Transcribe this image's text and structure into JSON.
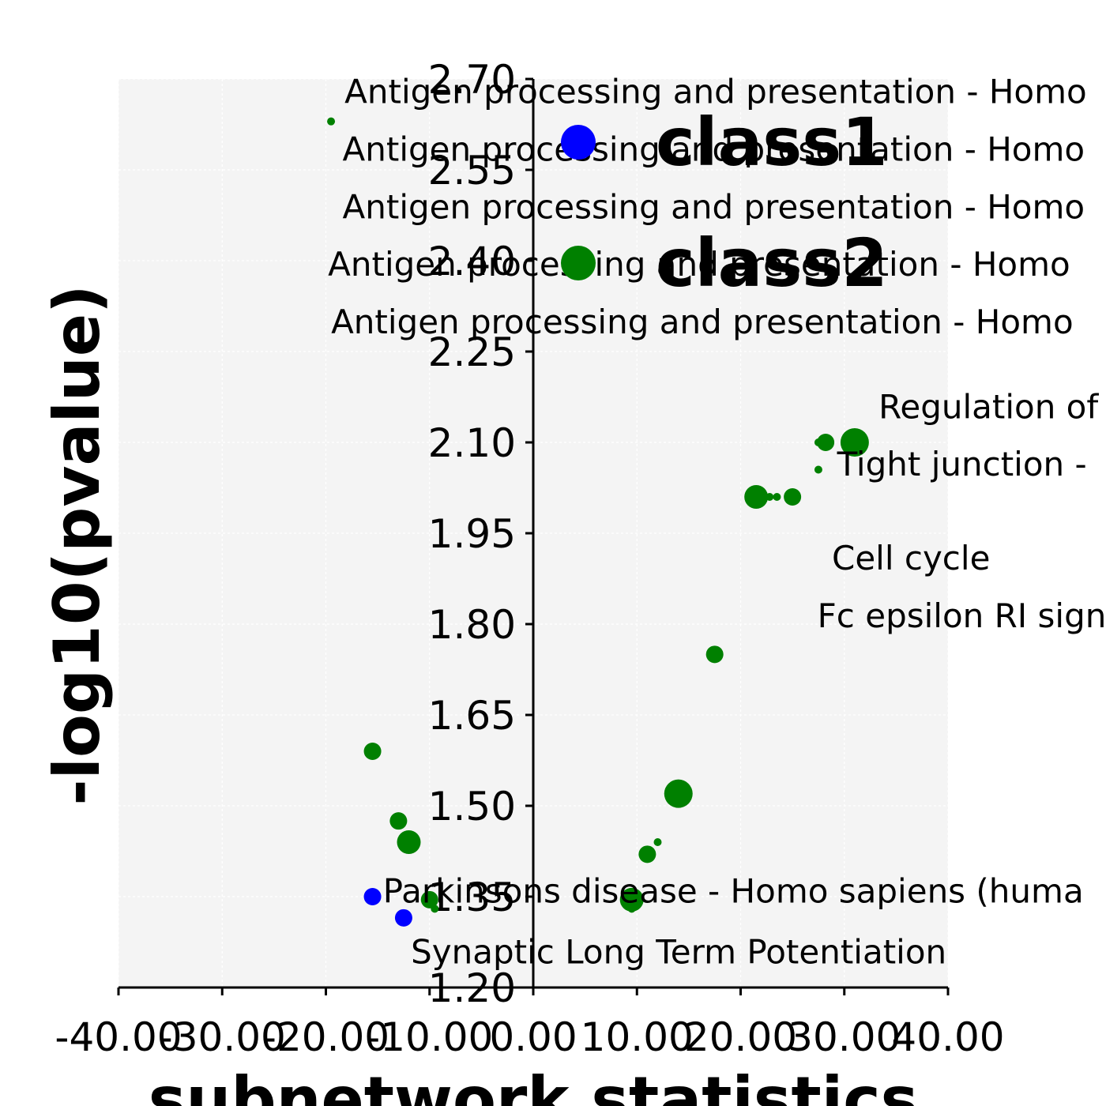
{
  "chart_data": {
    "type": "scatter",
    "xlabel": "subnetwork statistics",
    "ylabel": "-log10(pvalue)",
    "xlim": [
      -40,
      40
    ],
    "ylim": [
      1.2,
      2.7
    ],
    "x_ticks": [
      "-40.00",
      "-30.00",
      "-20.00",
      "-10.00",
      "0.00",
      "10.00",
      "20.00",
      "30.00",
      "40.00"
    ],
    "y_ticks": [
      "1.20",
      "1.35",
      "1.50",
      "1.65",
      "1.80",
      "1.95",
      "2.10",
      "2.25",
      "2.40",
      "2.55",
      "2.70"
    ],
    "grid": true,
    "legend_position": "top-center",
    "series": [
      {
        "name": "class1",
        "color": "#0000ff",
        "points": [
          {
            "x": -15.5,
            "y": 1.35,
            "size": 2
          },
          {
            "x": -12.5,
            "y": 1.315,
            "size": 2
          }
        ]
      },
      {
        "name": "class2",
        "color": "#008000",
        "points": [
          {
            "x": -19.5,
            "y": 2.63,
            "size": 1
          },
          {
            "x": -15.5,
            "y": 1.59,
            "size": 2
          },
          {
            "x": -13.0,
            "y": 1.475,
            "size": 2
          },
          {
            "x": -12.0,
            "y": 1.44,
            "size": 3
          },
          {
            "x": -10.0,
            "y": 1.345,
            "size": 2
          },
          {
            "x": -9.5,
            "y": 1.33,
            "size": 1
          },
          {
            "x": 9.5,
            "y": 1.33,
            "size": 1
          },
          {
            "x": 9.5,
            "y": 1.345,
            "size": 3
          },
          {
            "x": 11.0,
            "y": 1.42,
            "size": 2
          },
          {
            "x": 12.0,
            "y": 1.44,
            "size": 1
          },
          {
            "x": 14.0,
            "y": 1.52,
            "size": 4
          },
          {
            "x": 17.5,
            "y": 1.75,
            "size": 2
          },
          {
            "x": 21.5,
            "y": 2.01,
            "size": 3
          },
          {
            "x": 22.8,
            "y": 2.01,
            "size": 1
          },
          {
            "x": 23.5,
            "y": 2.01,
            "size": 1
          },
          {
            "x": 25.0,
            "y": 2.01,
            "size": 2
          },
          {
            "x": 27.5,
            "y": 2.055,
            "size": 1
          },
          {
            "x": 27.5,
            "y": 2.1,
            "size": 1
          },
          {
            "x": 28.2,
            "y": 2.1,
            "size": 2
          },
          {
            "x": 31.0,
            "y": 2.1,
            "size": 4
          }
        ]
      }
    ],
    "annotations": [
      {
        "text": "Antigen processing and presentation - Homo",
        "x": -18.2,
        "y": 2.66
      },
      {
        "text": "Antigen processing and presentation - Homo",
        "x": -18.4,
        "y": 2.565
      },
      {
        "text": "Antigen processing and presentation - Homo",
        "x": -18.4,
        "y": 2.47
      },
      {
        "text": "Antigen processing and presentation - Homo",
        "x": -19.8,
        "y": 2.375
      },
      {
        "text": "Antigen processing and presentation - Homo",
        "x": -19.5,
        "y": 2.28
      },
      {
        "text": "Regulation of",
        "x": 33.3,
        "y": 2.14
      },
      {
        "text": "Tight junction -",
        "x": 29.3,
        "y": 2.045
      },
      {
        "text": "Cell cycle",
        "x": 28.8,
        "y": 1.89
      },
      {
        "text": "Fc epsilon RI sign",
        "x": 27.4,
        "y": 1.795
      },
      {
        "text": "Parkinsons disease - Homo sapiens (huma",
        "x": -14.5,
        "y": 1.34
      },
      {
        "text": "Synaptic Long Term Potentiation",
        "x": -11.8,
        "y": 1.24
      }
    ]
  }
}
